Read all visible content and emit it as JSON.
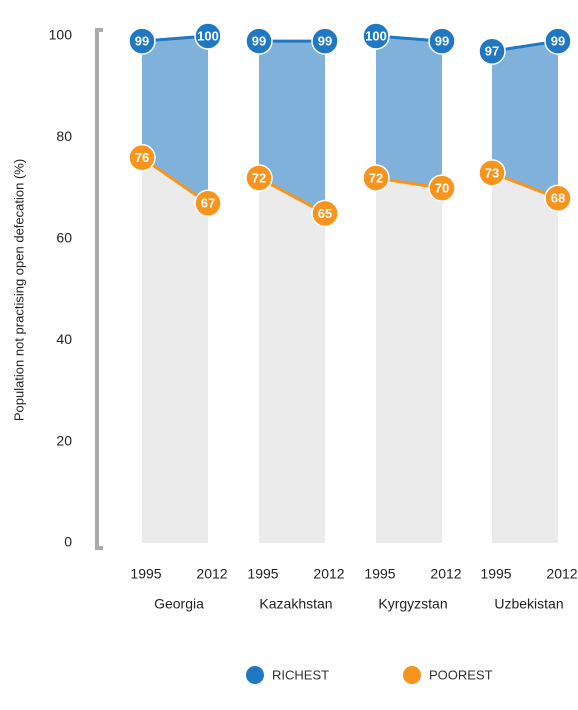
{
  "chart_data": {
    "type": "slope",
    "y_label": "Population not practising open defecation (%)",
    "groups": [
      "Georgia",
      "Kazakhstan",
      "Kyrgyzstan",
      "Uzbekistan"
    ],
    "x": [
      "1995",
      "2012"
    ],
    "series": [
      {
        "name": "RICHEST",
        "color": "#1f78c1",
        "area_color": "#7fb1da",
        "values": [
          [
            99,
            100
          ],
          [
            99,
            99
          ],
          [
            100,
            99
          ],
          [
            97,
            99
          ]
        ]
      },
      {
        "name": "POOREST",
        "color": "#f7941d",
        "area_color": "#ebebeb",
        "values": [
          [
            76,
            67
          ],
          [
            72,
            65
          ],
          [
            72,
            70
          ],
          [
            73,
            68
          ]
        ]
      }
    ],
    "ylim": [
      0,
      100
    ],
    "yticks": [
      0,
      20,
      40,
      60,
      80,
      100
    ]
  }
}
